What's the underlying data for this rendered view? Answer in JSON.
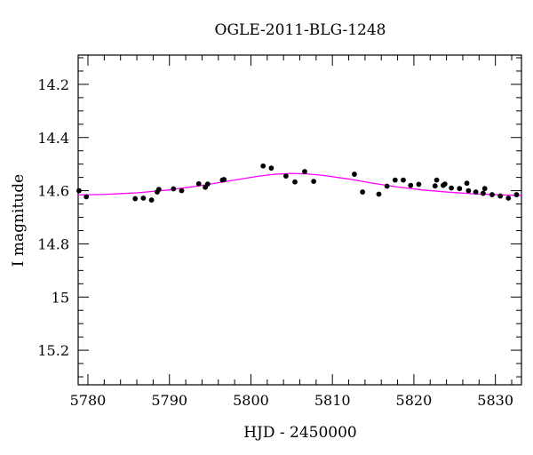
{
  "chart_data": {
    "type": "scatter",
    "title": "OGLE-2011-BLG-1248",
    "xlabel": "HJD - 2450000",
    "ylabel": "I magnitude",
    "xlim": [
      5778.8,
      5833.2
    ],
    "ylim": [
      15.33,
      14.09
    ],
    "y_inverted": true,
    "x_ticks": [
      5780,
      5790,
      5800,
      5810,
      5820,
      5830
    ],
    "x_tick_labels": [
      "5780",
      "5790",
      "5800",
      "5810",
      "5820",
      "5830"
    ],
    "y_ticks": [
      14.2,
      14.4,
      14.6,
      14.8,
      15.0,
      15.2
    ],
    "y_tick_labels": [
      "14.2",
      "14.4",
      "14.6",
      "14.8",
      "15",
      "15.2"
    ],
    "x_minor_step": 2,
    "y_minor_step": 0.05,
    "grid": false,
    "series": [
      {
        "kind": "points",
        "color": "#000000",
        "x": [
          5778.9,
          5779.8,
          5785.8,
          5786.8,
          5787.8,
          5788.5,
          5788.7,
          5790.5,
          5791.5,
          5793.6,
          5794.4,
          5794.7,
          5796.5,
          5796.7,
          5801.5,
          5802.5,
          5804.3,
          5805.4,
          5806.6,
          5807.7,
          5812.7,
          5813.7,
          5815.7,
          5816.7,
          5817.7,
          5818.7,
          5819.6,
          5820.6,
          5822.6,
          5822.8,
          5823.6,
          5823.8,
          5824.6,
          5825.6,
          5826.5,
          5826.7,
          5827.6,
          5828.5,
          5828.7,
          5829.6,
          5830.6,
          5831.6,
          5832.6
        ],
        "y": [
          14.6,
          14.623,
          14.63,
          14.628,
          14.635,
          14.605,
          14.595,
          14.593,
          14.6,
          14.574,
          14.587,
          14.575,
          14.56,
          14.558,
          14.507,
          14.515,
          14.545,
          14.567,
          14.528,
          14.565,
          14.538,
          14.605,
          14.613,
          14.583,
          14.56,
          14.56,
          14.58,
          14.576,
          14.582,
          14.56,
          14.58,
          14.575,
          14.59,
          14.592,
          14.572,
          14.6,
          14.605,
          14.61,
          14.592,
          14.615,
          14.62,
          14.628,
          14.615
        ]
      },
      {
        "kind": "model",
        "color": "#ff00ff",
        "x": [
          5778.8,
          5782,
          5786,
          5790,
          5794,
          5798,
          5801,
          5803,
          5805,
          5807,
          5809,
          5812,
          5815,
          5818,
          5821,
          5824,
          5827,
          5830,
          5833.2
        ],
        "y": [
          14.616,
          14.614,
          14.608,
          14.597,
          14.58,
          14.56,
          14.545,
          14.538,
          14.535,
          14.537,
          14.543,
          14.556,
          14.572,
          14.586,
          14.597,
          14.605,
          14.611,
          14.615,
          14.618
        ]
      }
    ]
  }
}
